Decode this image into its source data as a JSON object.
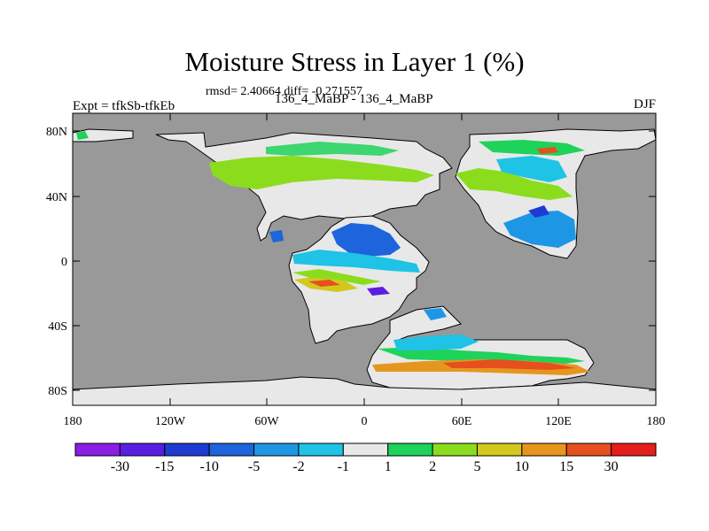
{
  "title": "Moisture Stress in Layer 1 (%)",
  "stats": "rmsd= 2.40664 diff= -0.271557",
  "experiment": "Expt = tfkSb-tfkEb",
  "period": "136_4_MaBP - 136_4_MaBP",
  "season": "DJF",
  "lat_labels": [
    "80N",
    "40N",
    "0",
    "40S",
    "80S"
  ],
  "lon_labels": [
    "180",
    "120W",
    "60W",
    "0",
    "60E",
    "120E",
    "180"
  ],
  "colorbar": {
    "labels": [
      "-30",
      "-15",
      "-10",
      "-5",
      "-2",
      "-1",
      "1",
      "2",
      "5",
      "10",
      "15",
      "30"
    ],
    "colors": [
      "#8a1ee6",
      "#5a1ee0",
      "#1e3cd2",
      "#1e64dc",
      "#1e96e6",
      "#1ec3e6",
      "#e8e8e8",
      "#1ed25a",
      "#8cdc1e",
      "#d2c81e",
      "#e6961e",
      "#e6501e",
      "#e61e1e"
    ]
  },
  "colors": {
    "ocean": "#999999",
    "land_neutral": "#e8e8e8"
  }
}
